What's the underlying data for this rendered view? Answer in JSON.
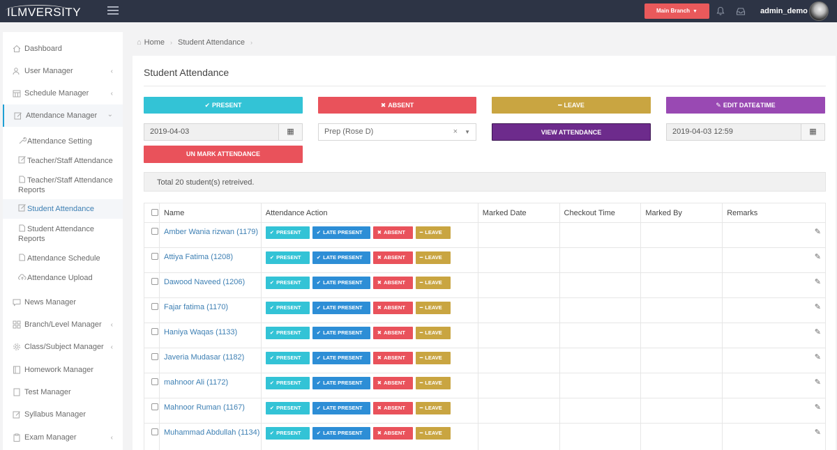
{
  "topbar": {
    "logo": "ILMVERSITY",
    "branch_button": "Main Branch",
    "user_name": "admin_demo"
  },
  "sidebar": {
    "items": [
      {
        "label": "Dashboard",
        "icon": "home-icon"
      },
      {
        "label": "User Manager",
        "icon": "users-icon"
      },
      {
        "label": "Schedule Manager",
        "icon": "calendar-icon"
      },
      {
        "label": "Attendance Manager",
        "icon": "edit-icon"
      },
      {
        "label": "News Manager",
        "icon": "comment-icon"
      },
      {
        "label": "Branch/Level Manager",
        "icon": "grid-icon"
      },
      {
        "label": "Class/Subject Manager",
        "icon": "gear-icon"
      },
      {
        "label": "Homework Manager",
        "icon": "book-icon"
      },
      {
        "label": "Test Manager",
        "icon": "file-icon"
      },
      {
        "label": "Syllabus Manager",
        "icon": "pencil-icon"
      },
      {
        "label": "Exam Manager",
        "icon": "clipboard-icon"
      }
    ],
    "sub_items": [
      {
        "label": "Attendance Setting"
      },
      {
        "label": "Teacher/Staff Attendance"
      },
      {
        "label": "Teacher/Staff Attendance",
        "label2": "Reports"
      },
      {
        "label": "Student Attendance"
      },
      {
        "label": "Student Attendance",
        "label2": "Reports"
      },
      {
        "label": "Attendance Schedule"
      },
      {
        "label": "Attendance Upload"
      }
    ]
  },
  "breadcrumb": {
    "home": "Home",
    "current": "Student Attendance"
  },
  "page": {
    "title": "Student Attendance",
    "buttons": {
      "present": "PRESENT",
      "absent": "ABSENT",
      "leave": "LEAVE",
      "edit_datetime": "EDIT DATE&TIME",
      "view_attendance": "VIEW ATTENDANCE",
      "unmark": "UN MARK ATTENDANCE"
    },
    "date_field": "2019-04-03",
    "class_select": "Prep (Rose D)",
    "datetime_field": "2019-04-03 12:59",
    "info": "Total 20 student(s) retreived."
  },
  "table": {
    "headers": [
      "Name",
      "Attendance Action",
      "Marked Date",
      "Checkout Time",
      "Marked By",
      "Remarks"
    ],
    "action_labels": {
      "present": "PRESENT",
      "late": "LATE PRESENT",
      "absent": "ABSENT",
      "leave": "LEAVE"
    },
    "rows": [
      {
        "name": "Amber Wania rizwan (1179)"
      },
      {
        "name": "Attiya Fatima (1208)"
      },
      {
        "name": "Dawood Naveed (1206)"
      },
      {
        "name": "Fajar fatima (1170)"
      },
      {
        "name": "Haniya Waqas (1133)"
      },
      {
        "name": "Javeria Mudasar (1182)"
      },
      {
        "name": "mahnoor Ali (1172)"
      },
      {
        "name": "Mahnoor Ruman (1167)"
      },
      {
        "name": "Muhammad Abdullah (1134)"
      }
    ]
  },
  "colors": {
    "topbar": "#2d3445",
    "cyan": "#33c3d6",
    "red": "#e9525b",
    "gold": "#c9a541",
    "purple": "#9949b3",
    "blue": "#2d8ed6"
  }
}
